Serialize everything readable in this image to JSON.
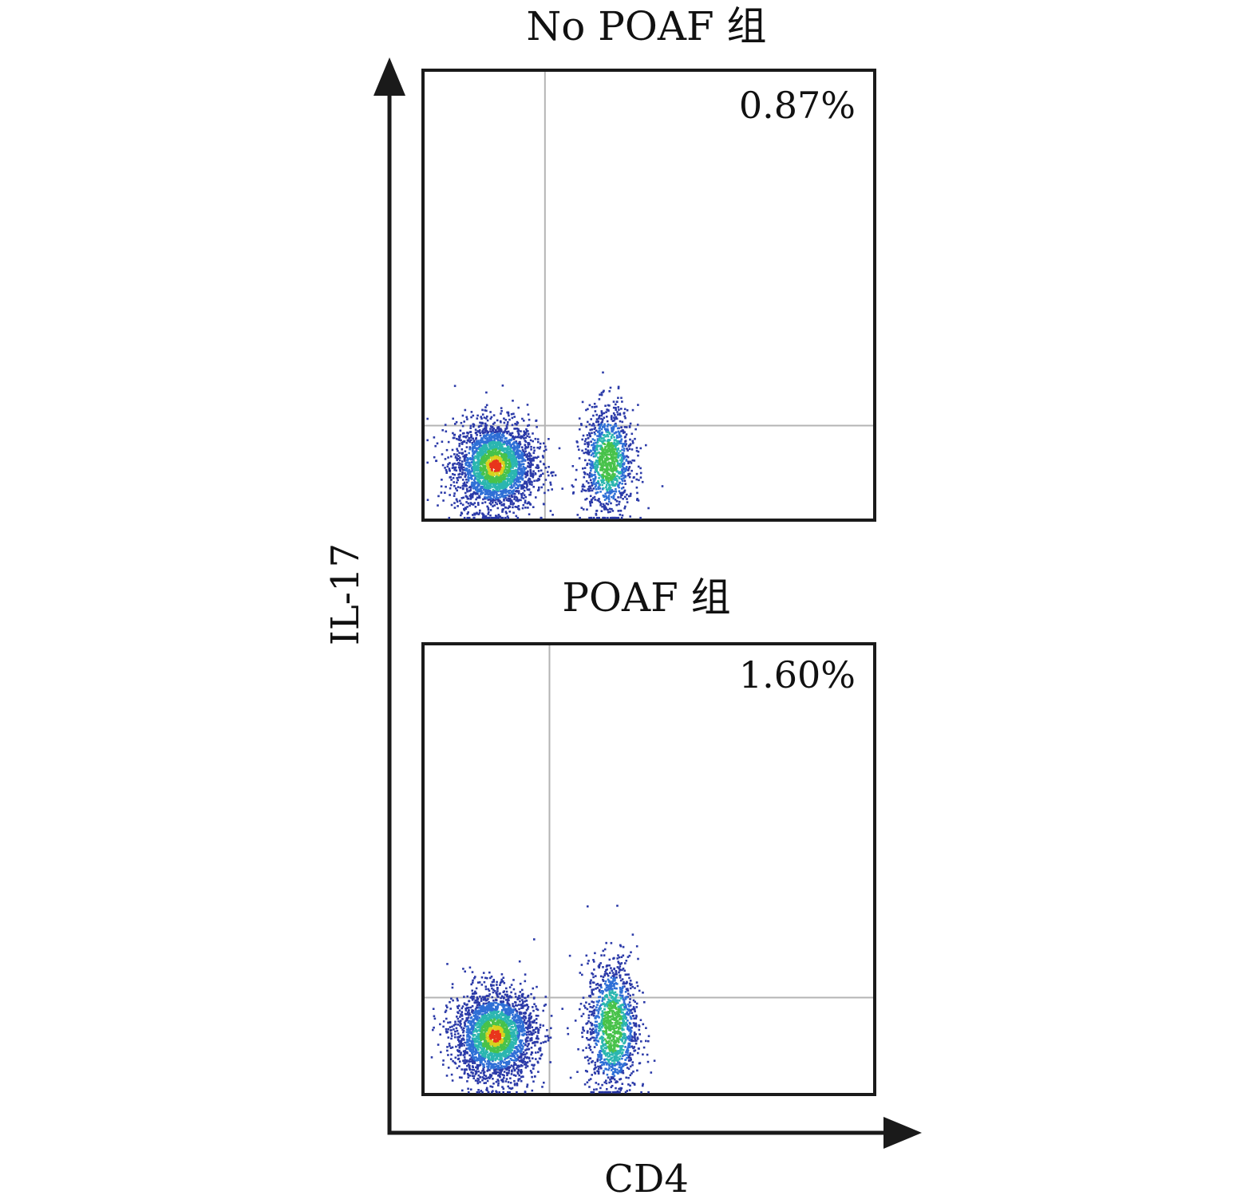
{
  "chart_data": [
    {
      "type": "scatter",
      "title": "No POAF 组",
      "xlabel": "CD4",
      "ylabel": "IL-17",
      "annotation": "0.87%",
      "quadrant_percent": 0.87,
      "populations": [
        {
          "name": "CD4- population",
          "cx": 0.16,
          "cy": 0.12,
          "sx": 0.045,
          "sy": 0.05,
          "count": 2600
        },
        {
          "name": "CD4+ population",
          "cx": 0.41,
          "cy": 0.13,
          "sx": 0.028,
          "sy": 0.06,
          "count": 1100
        }
      ],
      "gate_x": 0.27,
      "gate_y": 0.21,
      "colors": [
        "#2b3aa8",
        "#2f6fd6",
        "#2bb6b0",
        "#48c24a",
        "#d8d21e",
        "#e8351c"
      ]
    },
    {
      "type": "scatter",
      "title": "POAF 组",
      "xlabel": "CD4",
      "ylabel": "IL-17",
      "annotation": "1.60%",
      "quadrant_percent": 1.6,
      "populations": [
        {
          "name": "CD4- population",
          "cx": 0.16,
          "cy": 0.13,
          "sx": 0.045,
          "sy": 0.05,
          "count": 2600
        },
        {
          "name": "CD4+ population",
          "cx": 0.42,
          "cy": 0.15,
          "sx": 0.028,
          "sy": 0.075,
          "count": 1300
        }
      ],
      "gate_x": 0.28,
      "gate_y": 0.215,
      "colors": [
        "#2b3aa8",
        "#2f6fd6",
        "#2bb6b0",
        "#48c24a",
        "#d8d21e",
        "#e8351c"
      ]
    }
  ],
  "axes": {
    "x_label": "CD4",
    "y_label": "IL-17"
  }
}
